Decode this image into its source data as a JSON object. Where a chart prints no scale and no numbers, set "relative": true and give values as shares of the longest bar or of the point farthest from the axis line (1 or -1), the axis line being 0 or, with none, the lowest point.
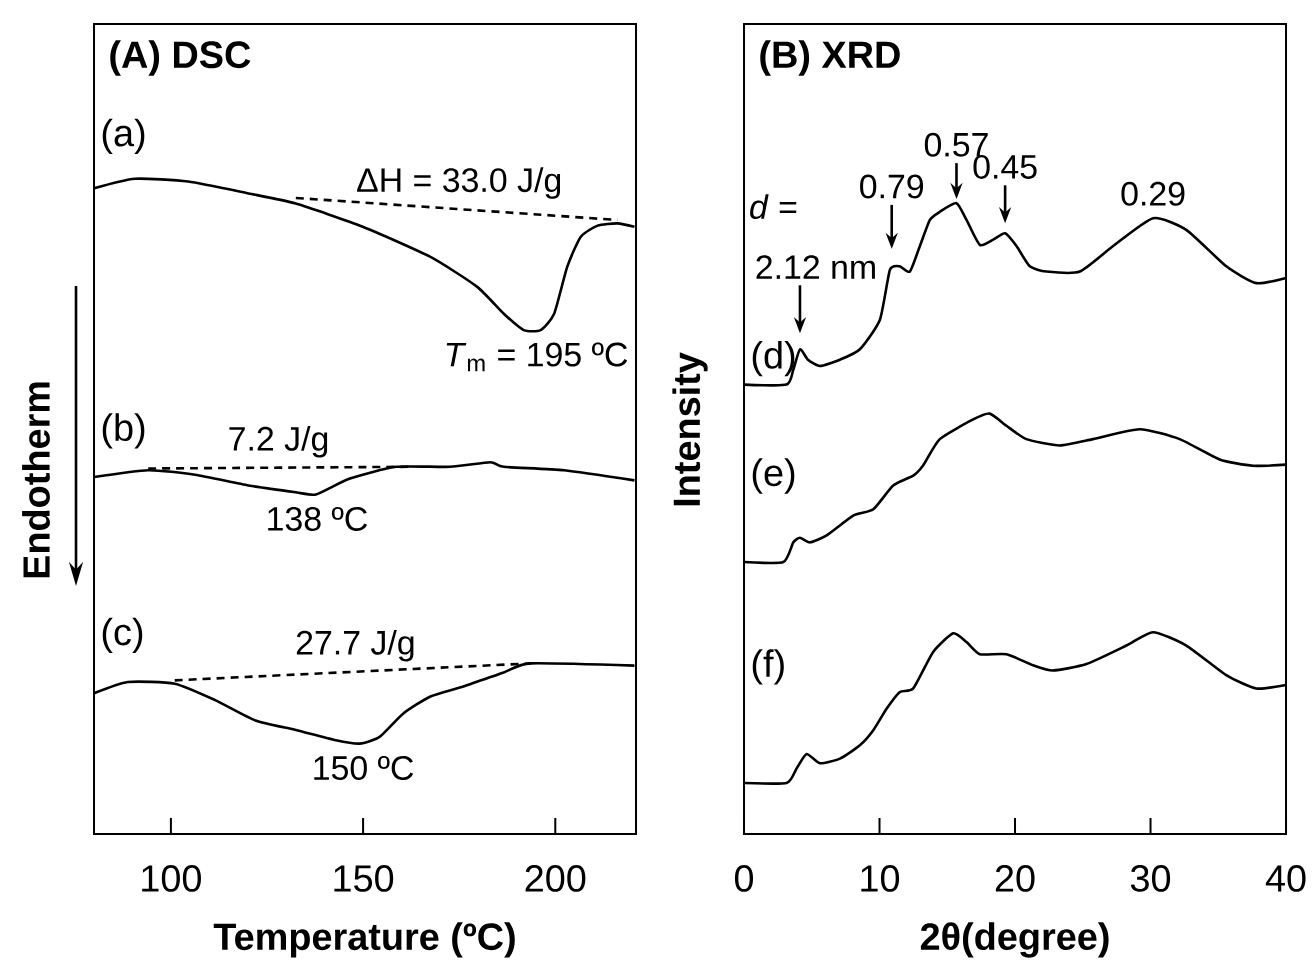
{
  "chart_data": [
    {
      "type": "line",
      "title": "(A) DSC",
      "xlabel": "Temperature (ºC)",
      "ylabel": "Endotherm",
      "relative": true,
      "xlim": [
        80,
        221
      ],
      "xticks": [
        100,
        150,
        200
      ],
      "series": [
        {
          "name": "(a)",
          "color": "#000000",
          "x": [
            80,
            90.6,
            104.5,
            120.2,
            132.5,
            149.9,
            167.4,
            179.6,
            186.6,
            191.8,
            196.2,
            199.7,
            203.1,
            206.6,
            211,
            216.2,
            220.6
          ],
          "values": [
            0.983,
            1.0,
            0.995,
            0.974,
            0.956,
            0.915,
            0.862,
            0.809,
            0.761,
            0.732,
            0.732,
            0.761,
            0.844,
            0.897,
            0.917,
            0.921,
            0.915
          ]
        },
        {
          "color": "#000000",
          "line_style": "dashed",
          "x": [
            132.5,
            216.2
          ],
          "values": [
            0.966,
            0.927
          ]
        },
        {
          "name": "(b)",
          "color": "#000000",
          "x": [
            80,
            94.1,
            106.3,
            120.2,
            132.5,
            137.7,
            146.4,
            158.6,
            172.6,
            183.1,
            186.6,
            202.3,
            220.6
          ],
          "values": [
            0.472,
            0.484,
            0.476,
            0.457,
            0.445,
            0.441,
            0.469,
            0.49,
            0.49,
            0.498,
            0.49,
            0.484,
            0.466
          ]
        },
        {
          "color": "#000000",
          "line_style": "dashed",
          "x": [
            94.1,
            162.1
          ],
          "values": [
            0.487,
            0.49
          ]
        },
        {
          "name": "(c)",
          "color": "#000000",
          "x": [
            80,
            88.8,
            101.0,
            111.5,
            122.0,
            132.5,
            142.9,
            149.1,
            154.3,
            160.4,
            167.4,
            176.1,
            186.6,
            193.6,
            220.6
          ],
          "values": [
            0.089,
            0.109,
            0.106,
            0.077,
            0.041,
            0.024,
            0.006,
            0,
            0.012,
            0.053,
            0.083,
            0.101,
            0.126,
            0.142,
            0.138
          ]
        },
        {
          "color": "#000000",
          "line_style": "dashed",
          "x": [
            101.0,
            193.6
          ],
          "values": [
            0.112,
            0.142
          ]
        }
      ],
      "annotations": [
        {
          "text": "ΔH = 33.0 J/g",
          "x": 175,
          "y": 0.946
        },
        {
          "text": "*T*$_{m}$ = 195 ºC",
          "x": 195,
          "y": 0.732
        },
        {
          "text": "7.2 J/g",
          "x": 128,
          "y": 0.488
        },
        {
          "text": "138 ºC",
          "x": 138,
          "y": 0.441
        },
        {
          "text": "27.7 J/g",
          "x": 148,
          "y": 0.127
        },
        {
          "text": "150 ºC",
          "x": 150,
          "y": 0
        }
      ]
    },
    {
      "type": "line",
      "title": "(B) XRD",
      "xlabel": "2θ(degree)",
      "ylabel": "Intensity",
      "relative": true,
      "xlim": [
        0,
        40
      ],
      "xticks": [
        0,
        10,
        20,
        30,
        40
      ],
      "series": [
        {
          "name": "(d)",
          "color": "#000000",
          "x": [
            0,
            3.14,
            3.64,
            4.13,
            4.72,
            5.6,
            7.08,
            8.55,
            10.03,
            10.77,
            11.5,
            12.24,
            12.98,
            13.72,
            14.45,
            15.68,
            16.42,
            17.4,
            18.39,
            19.27,
            20.11,
            21.09,
            22.32,
            24.78,
            27.24,
            30.19,
            32.64,
            35.59,
            37.81,
            40
          ],
          "values": [
            0.687,
            0.687,
            0.713,
            0.748,
            0.73,
            0.719,
            0.73,
            0.748,
            0.799,
            0.885,
            0.891,
            0.882,
            0.926,
            0.971,
            0.985,
            1.0,
            0.971,
            0.928,
            0.937,
            0.948,
            0.926,
            0.891,
            0.882,
            0.882,
            0.926,
            0.974,
            0.954,
            0.891,
            0.862,
            0.871
          ]
        },
        {
          "name": "(e)",
          "color": "#000000",
          "x": [
            0,
            2.9,
            3.64,
            4.13,
            4.87,
            6.1,
            8.06,
            9.54,
            11.01,
            12.49,
            13.23,
            14.45,
            16.91,
            18.14,
            19.37,
            20.84,
            23.3,
            25.76,
            29.2,
            32.15,
            35.1,
            37.56,
            40
          ],
          "values": [
            0.381,
            0.381,
            0.415,
            0.423,
            0.415,
            0.427,
            0.461,
            0.472,
            0.513,
            0.53,
            0.548,
            0.593,
            0.627,
            0.637,
            0.616,
            0.593,
            0.582,
            0.593,
            0.61,
            0.593,
            0.558,
            0.547,
            0.549
          ]
        },
        {
          "name": "(f)",
          "color": "#000000",
          "x": [
            0,
            3.14,
            3.88,
            4.62,
            5.6,
            7.08,
            8.55,
            9.54,
            10.52,
            11.5,
            12.49,
            13.96,
            15.44,
            16.42,
            17.4,
            19.37,
            21.34,
            22.81,
            25.27,
            28.22,
            30.19,
            32.64,
            35.59,
            37.81,
            40
          ],
          "values": [
            0,
            0,
            0.025,
            0.05,
            0.034,
            0.042,
            0.065,
            0.091,
            0.128,
            0.157,
            0.163,
            0.226,
            0.258,
            0.243,
            0.222,
            0.222,
            0.203,
            0.194,
            0.205,
            0.237,
            0.26,
            0.237,
            0.186,
            0.163,
            0.169
          ]
        }
      ],
      "annotations": [
        "*d* =",
        {
          "text": "2.12 nm",
          "x": 4.13,
          "y": 0.748
        },
        {
          "text": "0.79",
          "x": 10.9,
          "y": 0.89
        },
        {
          "text": "0.57",
          "x": 15.68,
          "y": 1.0
        },
        {
          "text": "0.45",
          "x": 19.27,
          "y": 0.948
        },
        {
          "text": "0.29",
          "x": 30.19,
          "y": 0.974
        }
      ]
    }
  ]
}
